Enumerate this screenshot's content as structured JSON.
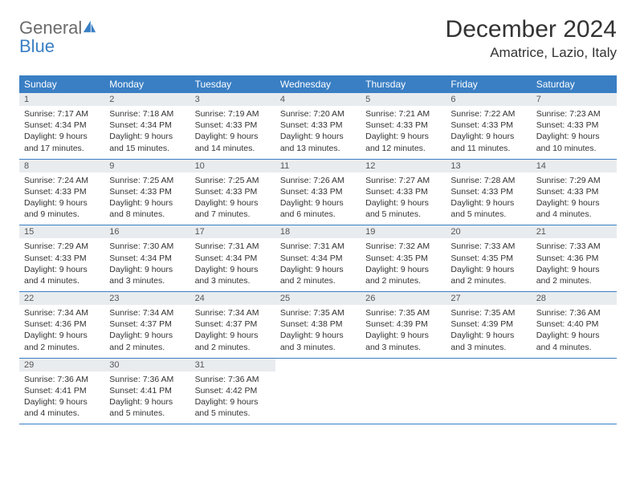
{
  "logo": {
    "text_general": "General",
    "text_blue": "Blue",
    "icon_color": "#3a7fc4"
  },
  "title": "December 2024",
  "location": "Amatrice, Lazio, Italy",
  "colors": {
    "header_bg": "#3a7fc4",
    "header_text": "#ffffff",
    "daynum_bg": "#e9ecef",
    "border": "#3a7fc4",
    "page_bg": "#ffffff",
    "body_text": "#333333"
  },
  "typography": {
    "title_fontsize": 30,
    "location_fontsize": 17,
    "header_fontsize": 12,
    "daynum_fontsize": 11,
    "daytext_fontsize": 10.5
  },
  "weekdays": [
    "Sunday",
    "Monday",
    "Tuesday",
    "Wednesday",
    "Thursday",
    "Friday",
    "Saturday"
  ],
  "weeks": [
    [
      {
        "num": "1",
        "sunrise": "7:17 AM",
        "sunset": "4:34 PM",
        "daylight": "9 hours and 17 minutes."
      },
      {
        "num": "2",
        "sunrise": "7:18 AM",
        "sunset": "4:34 PM",
        "daylight": "9 hours and 15 minutes."
      },
      {
        "num": "3",
        "sunrise": "7:19 AM",
        "sunset": "4:33 PM",
        "daylight": "9 hours and 14 minutes."
      },
      {
        "num": "4",
        "sunrise": "7:20 AM",
        "sunset": "4:33 PM",
        "daylight": "9 hours and 13 minutes."
      },
      {
        "num": "5",
        "sunrise": "7:21 AM",
        "sunset": "4:33 PM",
        "daylight": "9 hours and 12 minutes."
      },
      {
        "num": "6",
        "sunrise": "7:22 AM",
        "sunset": "4:33 PM",
        "daylight": "9 hours and 11 minutes."
      },
      {
        "num": "7",
        "sunrise": "7:23 AM",
        "sunset": "4:33 PM",
        "daylight": "9 hours and 10 minutes."
      }
    ],
    [
      {
        "num": "8",
        "sunrise": "7:24 AM",
        "sunset": "4:33 PM",
        "daylight": "9 hours and 9 minutes."
      },
      {
        "num": "9",
        "sunrise": "7:25 AM",
        "sunset": "4:33 PM",
        "daylight": "9 hours and 8 minutes."
      },
      {
        "num": "10",
        "sunrise": "7:25 AM",
        "sunset": "4:33 PM",
        "daylight": "9 hours and 7 minutes."
      },
      {
        "num": "11",
        "sunrise": "7:26 AM",
        "sunset": "4:33 PM",
        "daylight": "9 hours and 6 minutes."
      },
      {
        "num": "12",
        "sunrise": "7:27 AM",
        "sunset": "4:33 PM",
        "daylight": "9 hours and 5 minutes."
      },
      {
        "num": "13",
        "sunrise": "7:28 AM",
        "sunset": "4:33 PM",
        "daylight": "9 hours and 5 minutes."
      },
      {
        "num": "14",
        "sunrise": "7:29 AM",
        "sunset": "4:33 PM",
        "daylight": "9 hours and 4 minutes."
      }
    ],
    [
      {
        "num": "15",
        "sunrise": "7:29 AM",
        "sunset": "4:33 PM",
        "daylight": "9 hours and 4 minutes."
      },
      {
        "num": "16",
        "sunrise": "7:30 AM",
        "sunset": "4:34 PM",
        "daylight": "9 hours and 3 minutes."
      },
      {
        "num": "17",
        "sunrise": "7:31 AM",
        "sunset": "4:34 PM",
        "daylight": "9 hours and 3 minutes."
      },
      {
        "num": "18",
        "sunrise": "7:31 AM",
        "sunset": "4:34 PM",
        "daylight": "9 hours and 2 minutes."
      },
      {
        "num": "19",
        "sunrise": "7:32 AM",
        "sunset": "4:35 PM",
        "daylight": "9 hours and 2 minutes."
      },
      {
        "num": "20",
        "sunrise": "7:33 AM",
        "sunset": "4:35 PM",
        "daylight": "9 hours and 2 minutes."
      },
      {
        "num": "21",
        "sunrise": "7:33 AM",
        "sunset": "4:36 PM",
        "daylight": "9 hours and 2 minutes."
      }
    ],
    [
      {
        "num": "22",
        "sunrise": "7:34 AM",
        "sunset": "4:36 PM",
        "daylight": "9 hours and 2 minutes."
      },
      {
        "num": "23",
        "sunrise": "7:34 AM",
        "sunset": "4:37 PM",
        "daylight": "9 hours and 2 minutes."
      },
      {
        "num": "24",
        "sunrise": "7:34 AM",
        "sunset": "4:37 PM",
        "daylight": "9 hours and 2 minutes."
      },
      {
        "num": "25",
        "sunrise": "7:35 AM",
        "sunset": "4:38 PM",
        "daylight": "9 hours and 3 minutes."
      },
      {
        "num": "26",
        "sunrise": "7:35 AM",
        "sunset": "4:39 PM",
        "daylight": "9 hours and 3 minutes."
      },
      {
        "num": "27",
        "sunrise": "7:35 AM",
        "sunset": "4:39 PM",
        "daylight": "9 hours and 3 minutes."
      },
      {
        "num": "28",
        "sunrise": "7:36 AM",
        "sunset": "4:40 PM",
        "daylight": "9 hours and 4 minutes."
      }
    ],
    [
      {
        "num": "29",
        "sunrise": "7:36 AM",
        "sunset": "4:41 PM",
        "daylight": "9 hours and 4 minutes."
      },
      {
        "num": "30",
        "sunrise": "7:36 AM",
        "sunset": "4:41 PM",
        "daylight": "9 hours and 5 minutes."
      },
      {
        "num": "31",
        "sunrise": "7:36 AM",
        "sunset": "4:42 PM",
        "daylight": "9 hours and 5 minutes."
      },
      null,
      null,
      null,
      null
    ]
  ],
  "labels": {
    "sunrise": "Sunrise:",
    "sunset": "Sunset:",
    "daylight": "Daylight:"
  }
}
